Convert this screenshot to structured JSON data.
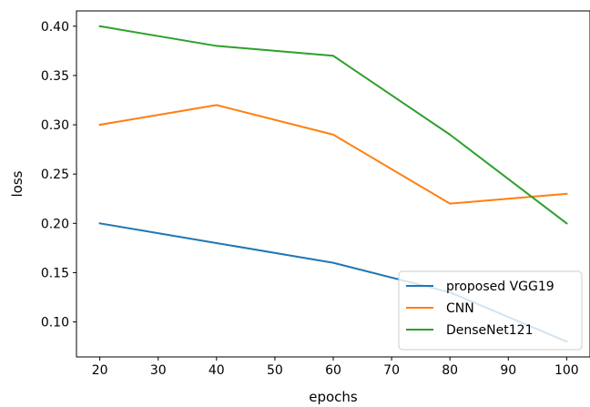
{
  "chart_data": {
    "type": "line",
    "title": "",
    "xlabel": "epochs",
    "ylabel": "loss",
    "x": [
      20,
      40,
      60,
      80,
      100
    ],
    "xlim": [
      16,
      104
    ],
    "ylim": [
      0.0645,
      0.4155
    ],
    "xticks": [
      20,
      30,
      40,
      50,
      60,
      70,
      80,
      90,
      100
    ],
    "yticks": [
      0.1,
      0.15,
      0.2,
      0.25,
      0.3,
      0.35,
      0.4
    ],
    "xtick_labels": [
      "20",
      "30",
      "40",
      "50",
      "60",
      "70",
      "80",
      "90",
      "100"
    ],
    "ytick_labels": [
      "0.10",
      "0.15",
      "0.20",
      "0.25",
      "0.30",
      "0.35",
      "0.40"
    ],
    "grid": false,
    "legend_position": "lower-right",
    "series": [
      {
        "name": "proposed VGG19",
        "color": "#1f77b4",
        "values": [
          0.2,
          0.18,
          0.16,
          0.13,
          0.08
        ]
      },
      {
        "name": "CNN",
        "color": "#ff7f0e",
        "values": [
          0.3,
          0.32,
          0.29,
          0.22,
          0.23
        ]
      },
      {
        "name": "DenseNet121",
        "color": "#2ca02c",
        "values": [
          0.4,
          0.38,
          0.37,
          0.29,
          0.2
        ]
      }
    ]
  }
}
